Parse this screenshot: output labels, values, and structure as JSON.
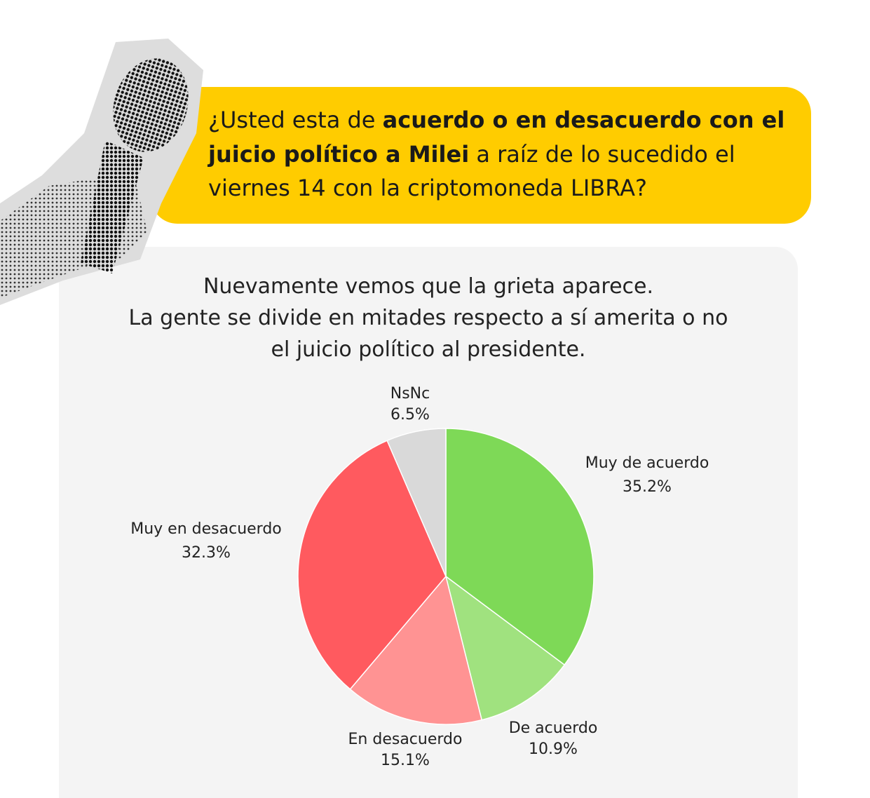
{
  "header": {
    "question_parts": [
      {
        "text": "¿Usted esta de ",
        "bold": false
      },
      {
        "text": "acuerdo o en desacuerdo con el juicio político a Milei",
        "bold": true
      },
      {
        "text": " a raíz de lo sucedido el viernes 14 con la criptomoneda LIBRA?",
        "bold": false
      }
    ],
    "icon": "microphone-icon"
  },
  "colors": {
    "bubble": "#ffcc00",
    "card": "#f4f4f4"
  },
  "chart_data": {
    "type": "pie",
    "subtitle": [
      "Nuevamente vemos que la grieta aparece.",
      "La gente se divide en mitades respecto a sí amerita o no",
      "el juicio político al presidente."
    ],
    "categories": [
      "Muy de acuerdo",
      "De acuerdo",
      "En desacuerdo",
      "Muy en desacuerdo",
      "NsNc"
    ],
    "values": [
      35.2,
      10.9,
      15.1,
      32.3,
      6.5
    ],
    "value_labels": [
      "35.2%",
      "10.9%",
      "15.1%",
      "32.3%",
      "6.5%"
    ],
    "colors": [
      "#7ed957",
      "#a0e27f",
      "#ff9393",
      "#ff5a5f",
      "#d9d9d9"
    ],
    "start": "12 o'clock, clockwise",
    "legend": "none"
  }
}
